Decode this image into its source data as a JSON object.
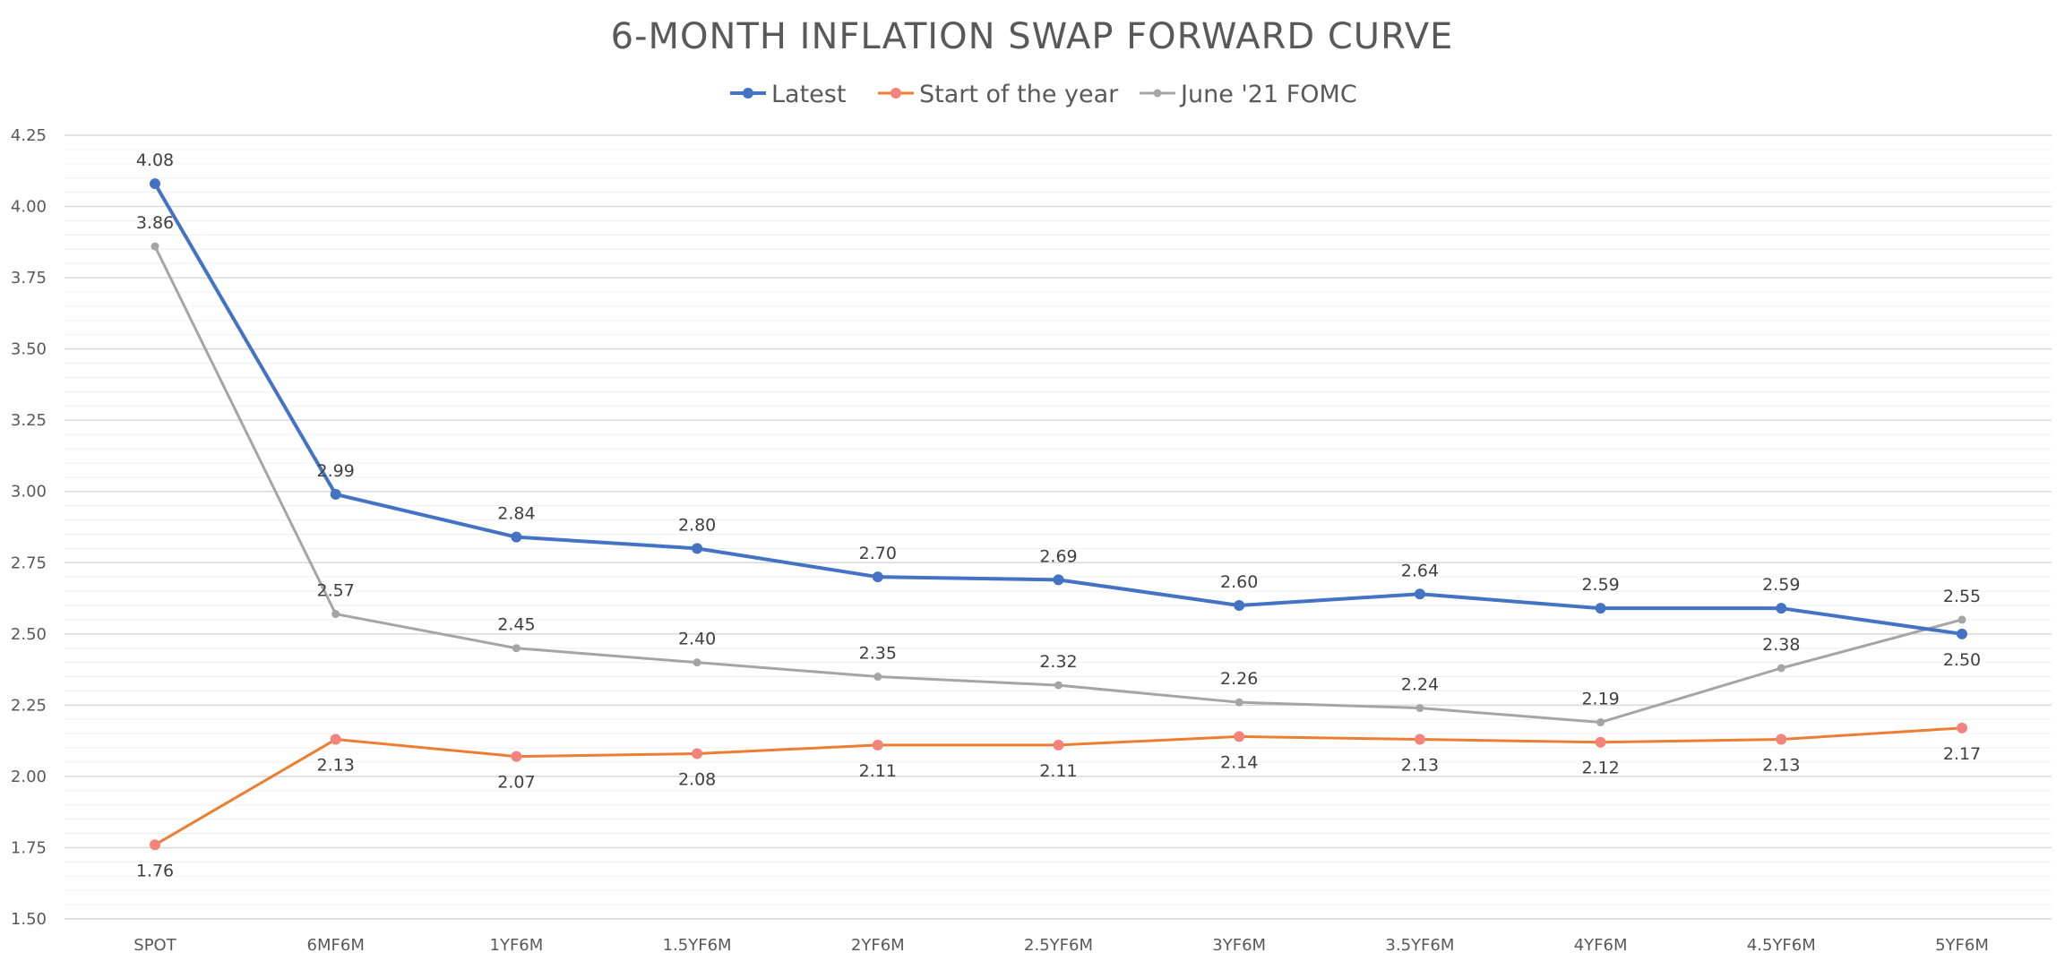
{
  "chart_data": {
    "type": "line",
    "title": "6-MONTH INFLATION SWAP FORWARD CURVE",
    "xlabel": "",
    "ylabel": "",
    "ylim": [
      1.5,
      4.25
    ],
    "yticks": [
      "1.50",
      "1.75",
      "2.00",
      "2.25",
      "2.50",
      "2.75",
      "3.00",
      "3.25",
      "3.50",
      "3.75",
      "4.00",
      "4.25"
    ],
    "grid": "horizontal",
    "legend_position": "top-center",
    "categories": [
      "SPOT",
      "6MF6M",
      "1YF6M",
      "1.5YF6M",
      "2YF6M",
      "2.5YF6M",
      "3YF6M",
      "3.5YF6M",
      "4YF6M",
      "4.5YF6M",
      "5YF6M"
    ],
    "series": [
      {
        "name": "Latest",
        "color": "#4472C4",
        "values": [
          4.08,
          2.99,
          2.84,
          2.8,
          2.7,
          2.69,
          2.6,
          2.64,
          2.59,
          2.59,
          2.5
        ],
        "labels": [
          "4.08",
          "2.99",
          "2.84",
          "2.80",
          "2.70",
          "2.69",
          "2.60",
          "2.64",
          "2.59",
          "2.59",
          "2.50"
        ],
        "label_positions": [
          "above",
          "above",
          "above",
          "above",
          "above",
          "above",
          "above",
          "above",
          "above",
          "above",
          "below"
        ]
      },
      {
        "name": "Start of the year",
        "color": "#ED7D31",
        "marker_color": "#F4847B",
        "values": [
          1.76,
          2.13,
          2.07,
          2.08,
          2.11,
          2.11,
          2.14,
          2.13,
          2.12,
          2.13,
          2.17
        ],
        "labels": [
          "1.76",
          "2.13",
          "2.07",
          "2.08",
          "2.11",
          "2.11",
          "2.14",
          "2.13",
          "2.12",
          "2.13",
          "2.17"
        ],
        "label_positions": [
          "below",
          "below",
          "below",
          "below",
          "below",
          "below",
          "below",
          "below",
          "below",
          "below",
          "below"
        ]
      },
      {
        "name": "June '21 FOMC",
        "color": "#A5A5A5",
        "values": [
          3.86,
          2.57,
          2.45,
          2.4,
          2.35,
          2.32,
          2.26,
          2.24,
          2.19,
          2.38,
          2.55
        ],
        "labels": [
          "3.86",
          "2.57",
          "2.45",
          "2.40",
          "2.35",
          "2.32",
          "2.26",
          "2.24",
          "2.19",
          "2.38",
          "2.55"
        ],
        "label_positions": [
          "above",
          "above",
          "above",
          "above",
          "above",
          "above",
          "above",
          "above",
          "above",
          "above",
          "above"
        ]
      }
    ]
  }
}
